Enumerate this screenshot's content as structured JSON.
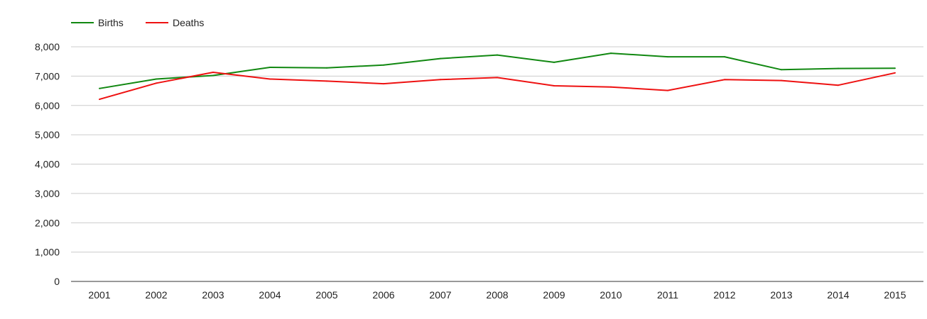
{
  "chart_data": {
    "type": "line",
    "x": [
      "2001",
      "2002",
      "2003",
      "2004",
      "2005",
      "2006",
      "2007",
      "2008",
      "2009",
      "2010",
      "2011",
      "2012",
      "2013",
      "2014",
      "2015"
    ],
    "series": [
      {
        "name": "Births",
        "color": "#118811",
        "values": [
          6580,
          6900,
          7020,
          7300,
          7280,
          7380,
          7600,
          7720,
          7470,
          7780,
          7660,
          7660,
          7220,
          7260,
          7270
        ]
      },
      {
        "name": "Deaths",
        "color": "#ee1111",
        "values": [
          6210,
          6760,
          7130,
          6900,
          6830,
          6740,
          6880,
          6950,
          6670,
          6630,
          6510,
          6880,
          6850,
          6690,
          7110
        ]
      }
    ],
    "ylim": [
      0,
      8000
    ],
    "yticks": [
      0,
      1000,
      2000,
      3000,
      4000,
      5000,
      6000,
      7000,
      8000
    ],
    "ytick_labels": [
      "0",
      "1,000",
      "2,000",
      "3,000",
      "4,000",
      "5,000",
      "6,000",
      "7,000",
      "8,000"
    ],
    "grid": true,
    "legend_position": "top-left"
  }
}
